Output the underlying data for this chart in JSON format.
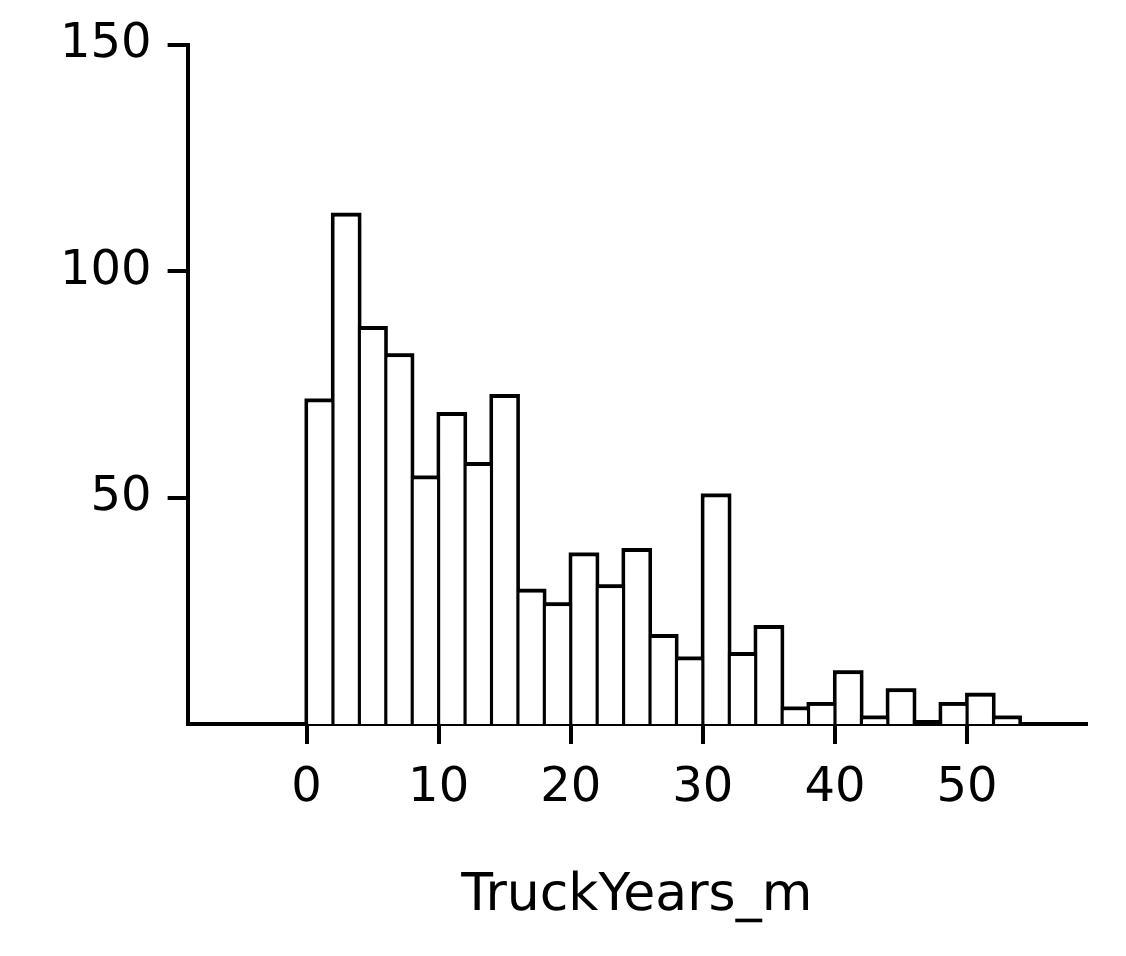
{
  "chart_data": {
    "type": "histogram",
    "xlabel": "TruckYears_m",
    "bins": [
      0,
      2,
      4,
      6,
      8,
      10,
      12,
      14,
      16,
      18,
      20,
      22,
      24,
      26,
      28,
      30,
      32,
      34,
      36,
      38,
      40,
      42,
      44,
      46,
      48,
      50,
      52,
      54
    ],
    "values": [
      71,
      112,
      87,
      81,
      54,
      68,
      57,
      72,
      29,
      26,
      37,
      30,
      38,
      19,
      14,
      50,
      15,
      21,
      3,
      4,
      11,
      1,
      7,
      0,
      4,
      6,
      1
    ],
    "color": "#ffffff",
    "xlim": [
      -9,
      59
    ],
    "xticks": [
      0,
      10,
      20,
      30,
      40,
      50
    ],
    "ylim": [
      0,
      150
    ],
    "yticks": [
      50,
      100,
      150
    ],
    "grid": false,
    "legend": false
  }
}
